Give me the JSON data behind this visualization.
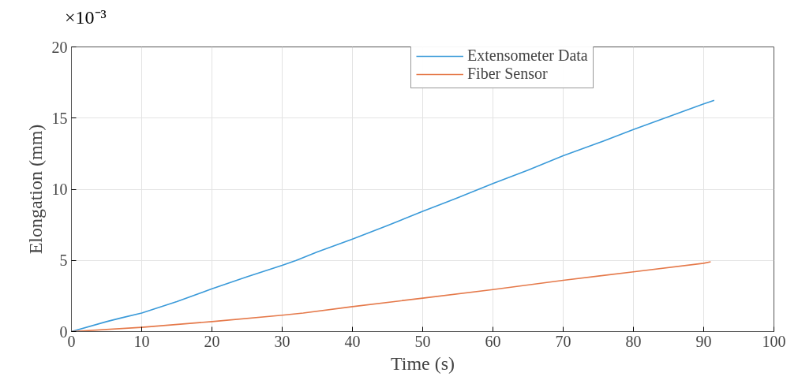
{
  "chart_data": {
    "type": "line",
    "xlabel": "Time (s)",
    "ylabel": "Elongation (mm)",
    "annotations": [
      "×10⁻³"
    ],
    "xlim": [
      0,
      100
    ],
    "xticks": [
      0,
      10,
      20,
      30,
      40,
      50,
      60,
      70,
      80,
      90,
      100
    ],
    "ylim": [
      0,
      20
    ],
    "yticks": [
      0,
      5,
      10,
      15,
      20
    ],
    "grid": true,
    "legend": "top",
    "line_style": "solid",
    "series": [
      {
        "name": "Extensometer Data",
        "color": "#3a9ad9",
        "x": [
          0,
          5,
          7,
          10,
          15,
          20,
          25,
          30,
          32,
          35,
          40,
          45,
          50,
          55,
          60,
          65,
          70,
          75,
          80,
          85,
          90,
          91.5
        ],
        "values": [
          0,
          0.7,
          0.95,
          1.3,
          2.1,
          3.0,
          3.85,
          4.65,
          5.0,
          5.6,
          6.5,
          7.45,
          8.45,
          9.4,
          10.4,
          11.35,
          12.35,
          13.25,
          14.2,
          15.1,
          16.0,
          16.25
        ]
      },
      {
        "name": "Fiber Sensor",
        "color": "#e5794a",
        "x": [
          0,
          10,
          20,
          30,
          33,
          40,
          50,
          60,
          70,
          80,
          90,
          91
        ],
        "values": [
          0,
          0.3,
          0.7,
          1.15,
          1.3,
          1.75,
          2.35,
          2.95,
          3.6,
          4.2,
          4.8,
          4.9
        ]
      }
    ]
  }
}
